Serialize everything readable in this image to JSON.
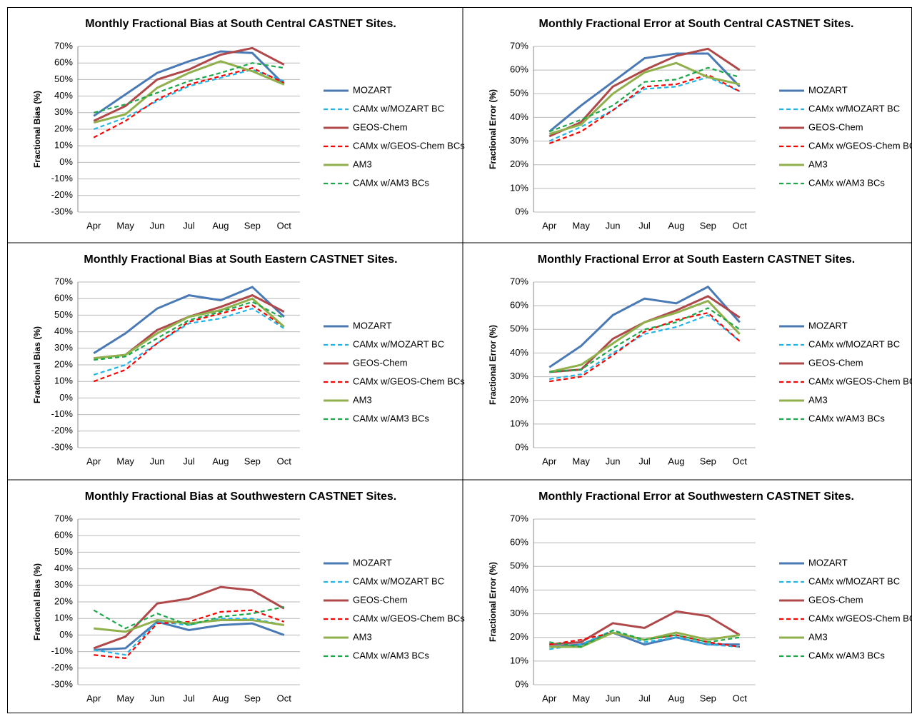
{
  "chart_data": [
    {
      "type": "line",
      "title": "Monthly Fractional Bias at South Central CASTNET Sites.",
      "y_label": "Fractional Bias (%)",
      "categories": [
        "Apr",
        "May",
        "Jun",
        "Jul",
        "Aug",
        "Sep",
        "Oct"
      ],
      "series": [
        {
          "name": "MOZART",
          "color": "#4a7ab5",
          "dashed": false,
          "values": [
            28,
            41,
            54,
            61,
            67,
            66,
            47
          ]
        },
        {
          "name": "CAMx w/MOZART BC",
          "color": "#1fb5e8",
          "dashed": true,
          "values": [
            20,
            27,
            37,
            46,
            51,
            56,
            49
          ]
        },
        {
          "name": "GEOS-Chem",
          "color": "#b0484a",
          "dashed": false,
          "values": [
            25,
            34,
            50,
            56,
            65,
            69,
            59
          ]
        },
        {
          "name": "CAMx w/GEOS-Chem BCs",
          "color": "#ff0000",
          "dashed": true,
          "values": [
            15,
            25,
            38,
            47,
            52,
            57,
            48
          ]
        },
        {
          "name": "AM3",
          "color": "#8fb04a",
          "dashed": false,
          "values": [
            24,
            29,
            45,
            54,
            61,
            55,
            47
          ]
        },
        {
          "name": "CAMx w/AM3 BCs",
          "color": "#1aa84a",
          "dashed": true,
          "values": [
            30,
            35,
            42,
            49,
            54,
            60,
            57
          ]
        }
      ],
      "ylim": [
        -30,
        70
      ],
      "yticks": [
        {
          "value": -30,
          "label": "-30%"
        },
        {
          "value": -20,
          "label": "-20%"
        },
        {
          "value": -10,
          "label": "-10%"
        },
        {
          "value": 0,
          "label": "0%"
        },
        {
          "value": 10,
          "label": "10%"
        },
        {
          "value": 20,
          "label": "20%"
        },
        {
          "value": 30,
          "label": "30%"
        },
        {
          "value": 40,
          "label": "40%"
        },
        {
          "value": 50,
          "label": "50%"
        },
        {
          "value": 60,
          "label": "60%"
        },
        {
          "value": 70,
          "label": "70%"
        }
      ],
      "grid": true,
      "legend": "right"
    },
    {
      "type": "line",
      "title": "Monthly Fractional Error at South Central CASTNET Sites.",
      "y_label": "Fractional Error (%)",
      "categories": [
        "Apr",
        "May",
        "Jun",
        "Jul",
        "Aug",
        "Sep",
        "Oct"
      ],
      "series": [
        {
          "name": "MOZART",
          "color": "#4a7ab5",
          "dashed": false,
          "values": [
            34,
            45,
            55,
            65,
            67,
            67,
            53
          ]
        },
        {
          "name": "CAMx w/MOZART BC",
          "color": "#1fb5e8",
          "dashed": true,
          "values": [
            30,
            36,
            43,
            52,
            53,
            57,
            51
          ]
        },
        {
          "name": "GEOS-Chem",
          "color": "#b0484a",
          "dashed": false,
          "values": [
            32,
            38,
            53,
            60,
            66,
            69,
            60
          ]
        },
        {
          "name": "CAMx w/GEOS-Chem BCs",
          "color": "#ff0000",
          "dashed": true,
          "values": [
            29,
            34,
            43,
            53,
            54,
            58,
            51
          ]
        },
        {
          "name": "AM3",
          "color": "#8fb04a",
          "dashed": false,
          "values": [
            33,
            37,
            50,
            59,
            63,
            57,
            54
          ]
        },
        {
          "name": "CAMx w/AM3 BCs",
          "color": "#1aa84a",
          "dashed": true,
          "values": [
            34,
            39,
            45,
            55,
            56,
            61,
            57
          ]
        }
      ],
      "ylim": [
        0,
        70
      ],
      "yticks": [
        {
          "value": 0,
          "label": "0%"
        },
        {
          "value": 10,
          "label": "10%"
        },
        {
          "value": 20,
          "label": "20%"
        },
        {
          "value": 30,
          "label": "30%"
        },
        {
          "value": 40,
          "label": "40%"
        },
        {
          "value": 50,
          "label": "50%"
        },
        {
          "value": 60,
          "label": "60%"
        },
        {
          "value": 70,
          "label": "70%"
        }
      ],
      "grid": true,
      "legend": "right"
    },
    {
      "type": "line",
      "title": "Monthly Fractional Bias at South Eastern CASTNET Sites.",
      "y_label": "Fractional Bias (%)",
      "categories": [
        "Apr",
        "May",
        "Jun",
        "Jul",
        "Aug",
        "Sep",
        "Oct"
      ],
      "series": [
        {
          "name": "MOZART",
          "color": "#4a7ab5",
          "dashed": false,
          "values": [
            27,
            39,
            54,
            62,
            59,
            67,
            49
          ]
        },
        {
          "name": "CAMx w/MOZART BC",
          "color": "#1fb5e8",
          "dashed": true,
          "values": [
            14,
            20,
            33,
            45,
            48,
            54,
            42
          ]
        },
        {
          "name": "GEOS-Chem",
          "color": "#b0484a",
          "dashed": false,
          "values": [
            24,
            26,
            41,
            49,
            55,
            62,
            52
          ]
        },
        {
          "name": "CAMx w/GEOS-Chem BCs",
          "color": "#ff0000",
          "dashed": true,
          "values": [
            10,
            17,
            33,
            46,
            51,
            56,
            43
          ]
        },
        {
          "name": "AM3",
          "color": "#8fb04a",
          "dashed": false,
          "values": [
            24,
            26,
            39,
            49,
            53,
            60,
            43
          ]
        },
        {
          "name": "CAMx w/AM3 BCs",
          "color": "#1aa84a",
          "dashed": true,
          "values": [
            23,
            25,
            36,
            47,
            52,
            58,
            48
          ]
        }
      ],
      "ylim": [
        -30,
        70
      ],
      "yticks": [
        {
          "value": -30,
          "label": "-30%"
        },
        {
          "value": -20,
          "label": "-20%"
        },
        {
          "value": -10,
          "label": "-10%"
        },
        {
          "value": 0,
          "label": "0%"
        },
        {
          "value": 10,
          "label": "10%"
        },
        {
          "value": 20,
          "label": "20%"
        },
        {
          "value": 30,
          "label": "30%"
        },
        {
          "value": 40,
          "label": "40%"
        },
        {
          "value": 50,
          "label": "50%"
        },
        {
          "value": 60,
          "label": "60%"
        },
        {
          "value": 70,
          "label": "70%"
        }
      ],
      "grid": true,
      "legend": "right"
    },
    {
      "type": "line",
      "title": "Monthly Fractional Error at South Eastern CASTNET Sites.",
      "y_label": "Fractional Error (%)",
      "categories": [
        "Apr",
        "May",
        "Jun",
        "Jul",
        "Aug",
        "Sep",
        "Oct"
      ],
      "series": [
        {
          "name": "MOZART",
          "color": "#4a7ab5",
          "dashed": false,
          "values": [
            34,
            43,
            56,
            63,
            61,
            68,
            53
          ]
        },
        {
          "name": "CAMx w/MOZART BC",
          "color": "#1fb5e8",
          "dashed": true,
          "values": [
            29,
            31,
            40,
            48,
            51,
            56,
            45
          ]
        },
        {
          "name": "GEOS-Chem",
          "color": "#b0484a",
          "dashed": false,
          "values": [
            32,
            33,
            46,
            53,
            58,
            64,
            55
          ]
        },
        {
          "name": "CAMx w/GEOS-Chem BCs",
          "color": "#ff0000",
          "dashed": true,
          "values": [
            28,
            30,
            39,
            49,
            54,
            57,
            45
          ]
        },
        {
          "name": "AM3",
          "color": "#8fb04a",
          "dashed": false,
          "values": [
            32,
            35,
            44,
            53,
            57,
            62,
            48
          ]
        },
        {
          "name": "CAMx w/AM3 BCs",
          "color": "#1aa84a",
          "dashed": true,
          "values": [
            32,
            33,
            42,
            50,
            53,
            59,
            50
          ]
        }
      ],
      "ylim": [
        0,
        70
      ],
      "yticks": [
        {
          "value": 0,
          "label": "0%"
        },
        {
          "value": 10,
          "label": "10%"
        },
        {
          "value": 20,
          "label": "20%"
        },
        {
          "value": 30,
          "label": "30%"
        },
        {
          "value": 40,
          "label": "40%"
        },
        {
          "value": 50,
          "label": "50%"
        },
        {
          "value": 60,
          "label": "60%"
        },
        {
          "value": 70,
          "label": "70%"
        }
      ],
      "grid": true,
      "legend": "right"
    },
    {
      "type": "line",
      "title": "Monthly Fractional Bias at Southwestern CASTNET Sites.",
      "y_label": "Fractional Bias (%)",
      "categories": [
        "Apr",
        "May",
        "Jun",
        "Jul",
        "Aug",
        "Sep",
        "Oct"
      ],
      "series": [
        {
          "name": "MOZART",
          "color": "#4a7ab5",
          "dashed": false,
          "values": [
            -9,
            -8,
            8,
            3,
            6,
            7,
            0
          ]
        },
        {
          "name": "CAMx w/MOZART BC",
          "color": "#1fb5e8",
          "dashed": true,
          "values": [
            -9,
            -12,
            8,
            6,
            10,
            10,
            6
          ]
        },
        {
          "name": "GEOS-Chem",
          "color": "#b0484a",
          "dashed": false,
          "values": [
            -8,
            -1,
            19,
            22,
            29,
            27,
            16
          ]
        },
        {
          "name": "CAMx w/GEOS-Chem BCs",
          "color": "#ff0000",
          "dashed": true,
          "values": [
            -12,
            -14,
            7,
            8,
            14,
            15,
            8
          ]
        },
        {
          "name": "AM3",
          "color": "#8fb04a",
          "dashed": false,
          "values": [
            4,
            2,
            9,
            7,
            9,
            9,
            6
          ]
        },
        {
          "name": "CAMx w/AM3 BCs",
          "color": "#1aa84a",
          "dashed": true,
          "values": [
            15,
            4,
            13,
            6,
            11,
            13,
            17
          ]
        }
      ],
      "ylim": [
        -30,
        70
      ],
      "yticks": [
        {
          "value": -30,
          "label": "-30%"
        },
        {
          "value": -20,
          "label": "-20%"
        },
        {
          "value": -10,
          "label": "-10%"
        },
        {
          "value": 0,
          "label": "0%"
        },
        {
          "value": 10,
          "label": "10%"
        },
        {
          "value": 20,
          "label": "20%"
        },
        {
          "value": 30,
          "label": "30%"
        },
        {
          "value": 40,
          "label": "40%"
        },
        {
          "value": 50,
          "label": "50%"
        },
        {
          "value": 60,
          "label": "60%"
        },
        {
          "value": 70,
          "label": "70%"
        }
      ],
      "grid": true,
      "legend": "right"
    },
    {
      "type": "line",
      "title": "Monthly Fractional Error at Southwestern CASTNET Sites.",
      "y_label": "Fractional Error (%)",
      "categories": [
        "Apr",
        "May",
        "Jun",
        "Jul",
        "Aug",
        "Sep",
        "Oct"
      ],
      "series": [
        {
          "name": "MOZART",
          "color": "#4a7ab5",
          "dashed": false,
          "values": [
            16,
            17,
            22,
            17,
            20,
            17,
            17
          ]
        },
        {
          "name": "CAMx w/MOZART BC",
          "color": "#1fb5e8",
          "dashed": true,
          "values": [
            15,
            17,
            23,
            18,
            20,
            17,
            16
          ]
        },
        {
          "name": "GEOS-Chem",
          "color": "#b0484a",
          "dashed": false,
          "values": [
            17,
            18,
            26,
            24,
            31,
            29,
            21
          ]
        },
        {
          "name": "CAMx w/GEOS-Chem BCs",
          "color": "#ff0000",
          "dashed": true,
          "values": [
            17,
            19,
            22,
            19,
            21,
            18,
            16
          ]
        },
        {
          "name": "AM3",
          "color": "#8fb04a",
          "dashed": false,
          "values": [
            16,
            16,
            22,
            19,
            22,
            19,
            21
          ]
        },
        {
          "name": "CAMx w/AM3 BCs",
          "color": "#1aa84a",
          "dashed": true,
          "values": [
            18,
            16,
            23,
            19,
            21,
            18,
            20
          ]
        }
      ],
      "ylim": [
        0,
        70
      ],
      "yticks": [
        {
          "value": 0,
          "label": "0%"
        },
        {
          "value": 10,
          "label": "10%"
        },
        {
          "value": 20,
          "label": "20%"
        },
        {
          "value": 30,
          "label": "30%"
        },
        {
          "value": 40,
          "label": "40%"
        },
        {
          "value": 50,
          "label": "50%"
        },
        {
          "value": 60,
          "label": "60%"
        },
        {
          "value": 70,
          "label": "70%"
        }
      ],
      "grid": true,
      "legend": "right"
    }
  ]
}
